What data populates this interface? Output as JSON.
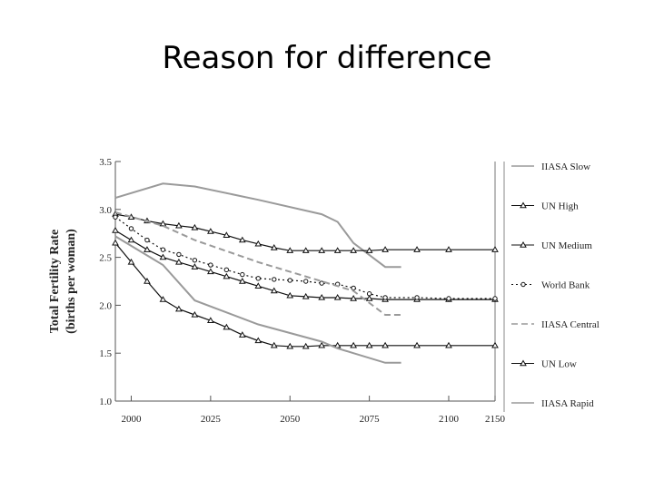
{
  "slide": {
    "title": "Reason for difference"
  },
  "colors": {
    "background": "#ffffff",
    "ink": "#111111",
    "gray": "#9a9a9a"
  },
  "chart_data": {
    "type": "line",
    "title": "",
    "xlabel": "",
    "ylabel": "Total Fertility Rate\n(births per woman)",
    "ylim": [
      1.0,
      3.5
    ],
    "yticks": [
      "1.0",
      "1.5",
      "2.0",
      "2.5",
      "3.0",
      "3.5"
    ],
    "xticks": [
      "2000",
      "2025",
      "2050",
      "2075",
      "2100",
      "2150"
    ],
    "grid": false,
    "legend_position": "right",
    "series": [
      {
        "name": "IIASA Slow",
        "color": "#9a9a9a",
        "dash": "solid",
        "marker": "none",
        "x": [
          1995,
          2010,
          2020,
          2040,
          2060,
          2065,
          2070,
          2080,
          2085
        ],
        "y": [
          3.12,
          3.27,
          3.24,
          3.1,
          2.95,
          2.87,
          2.65,
          2.4,
          2.4
        ]
      },
      {
        "name": "UN High",
        "color": "#111111",
        "dash": "solid",
        "marker": "triangle",
        "x": [
          1995,
          2000,
          2005,
          2010,
          2015,
          2020,
          2025,
          2030,
          2035,
          2040,
          2045,
          2050,
          2055,
          2060,
          2065,
          2070,
          2075,
          2080,
          2090,
          2100,
          2150
        ],
        "y": [
          2.95,
          2.92,
          2.88,
          2.85,
          2.83,
          2.81,
          2.77,
          2.73,
          2.68,
          2.64,
          2.6,
          2.57,
          2.57,
          2.57,
          2.57,
          2.57,
          2.57,
          2.58,
          2.58,
          2.58,
          2.58
        ]
      },
      {
        "name": "UN Medium",
        "color": "#111111",
        "dash": "solid",
        "marker": "triangle",
        "x": [
          1995,
          2000,
          2005,
          2010,
          2015,
          2020,
          2025,
          2030,
          2035,
          2040,
          2045,
          2050,
          2055,
          2060,
          2065,
          2070,
          2075,
          2080,
          2090,
          2100,
          2150
        ],
        "y": [
          2.78,
          2.68,
          2.58,
          2.5,
          2.45,
          2.4,
          2.35,
          2.3,
          2.25,
          2.2,
          2.15,
          2.1,
          2.09,
          2.08,
          2.08,
          2.07,
          2.07,
          2.06,
          2.06,
          2.06,
          2.06
        ]
      },
      {
        "name": "World Bank",
        "color": "#111111",
        "dash": "dotted",
        "marker": "circle",
        "x": [
          1995,
          2000,
          2005,
          2010,
          2015,
          2020,
          2025,
          2030,
          2035,
          2040,
          2045,
          2050,
          2055,
          2060,
          2065,
          2070,
          2075,
          2080,
          2090,
          2100,
          2150
        ],
        "y": [
          2.92,
          2.8,
          2.68,
          2.58,
          2.53,
          2.47,
          2.42,
          2.37,
          2.32,
          2.28,
          2.27,
          2.26,
          2.25,
          2.23,
          2.22,
          2.18,
          2.12,
          2.08,
          2.08,
          2.07,
          2.07
        ]
      },
      {
        "name": "IIASA Central",
        "color": "#9a9a9a",
        "dash": "dashed",
        "marker": "none",
        "x": [
          1995,
          2010,
          2020,
          2040,
          2060,
          2070,
          2080,
          2085
        ],
        "y": [
          2.97,
          2.83,
          2.68,
          2.45,
          2.25,
          2.15,
          1.9,
          1.9
        ]
      },
      {
        "name": "UN Low",
        "color": "#111111",
        "dash": "solid",
        "marker": "triangle",
        "x": [
          1995,
          2000,
          2005,
          2010,
          2015,
          2020,
          2025,
          2030,
          2035,
          2040,
          2045,
          2050,
          2055,
          2060,
          2065,
          2070,
          2075,
          2080,
          2090,
          2100,
          2150
        ],
        "y": [
          2.65,
          2.45,
          2.25,
          2.06,
          1.96,
          1.9,
          1.84,
          1.77,
          1.69,
          1.63,
          1.58,
          1.57,
          1.57,
          1.58,
          1.58,
          1.58,
          1.58,
          1.58,
          1.58,
          1.58,
          1.58
        ]
      },
      {
        "name": "IIASA Rapid",
        "color": "#9a9a9a",
        "dash": "solid",
        "marker": "none",
        "x": [
          1995,
          2010,
          2020,
          2040,
          2060,
          2065,
          2070,
          2080,
          2085
        ],
        "y": [
          2.72,
          2.42,
          2.05,
          1.8,
          1.62,
          1.55,
          1.5,
          1.4,
          1.4
        ]
      }
    ]
  }
}
